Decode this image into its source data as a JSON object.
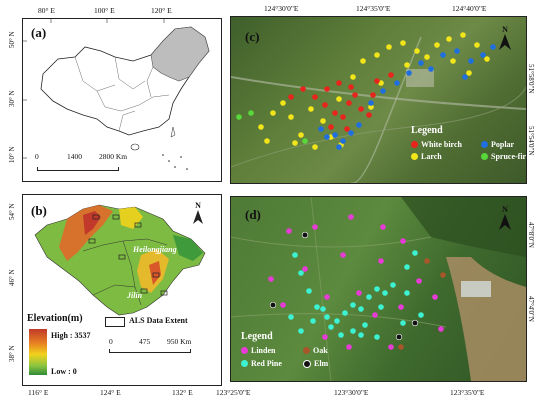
{
  "panel_a": {
    "label": "(a)",
    "top_ticks": [
      "80° E",
      "100° E",
      "120° E"
    ],
    "left_ticks": [
      "50° N",
      "30° N",
      "10° N"
    ],
    "scale": [
      "0",
      "1400",
      "2800 Km"
    ],
    "colors": {
      "highlight": "#bdbdbd",
      "outline": "#222222"
    }
  },
  "panel_b": {
    "label": "(b)",
    "left_ticks": [
      "54° N",
      "46° N",
      "38° N"
    ],
    "bottom_ticks": [
      "116° E",
      "124° E",
      "132° E"
    ],
    "regions": [
      "Heilongjiang",
      "Inner Mongolia",
      "Jilin"
    ],
    "elevation_title": "Elevation(m)",
    "elevation_high": "High : 3537",
    "elevation_low": "Low : 0",
    "als_label": "ALS Data Extent",
    "scale": [
      "0",
      "475",
      "950 Km"
    ],
    "north": "N"
  },
  "panel_c": {
    "label": "(c)",
    "top_ticks": [
      "124°30'0\"E",
      "124°35'0\"E",
      "124°40'0\"E"
    ],
    "right_ticks": [
      "51°58'0\"N",
      "51°54'0\"N"
    ],
    "legend_title": "Legend",
    "legend": [
      {
        "name": "White birch",
        "color": "#e8241c"
      },
      {
        "name": "Poplar",
        "color": "#1f6fe0"
      },
      {
        "name": "Larch",
        "color": "#f2e51a"
      },
      {
        "name": "Spruce-fir",
        "color": "#58d83a"
      }
    ],
    "north": "N"
  },
  "panel_d": {
    "label": "(d)",
    "bottom_ticks": [
      "123°25'0\"E",
      "123°30'0\"E",
      "123°35'0\"E"
    ],
    "right_ticks": [
      "47°8'0\"N",
      "47°4'0\"N"
    ],
    "legend_title": "Legend",
    "legend": [
      {
        "name": "Linden",
        "color": "#e83ad6"
      },
      {
        "name": "Oak",
        "color": "#a8562a"
      },
      {
        "name": "Red Pine",
        "color": "#3df2d2"
      },
      {
        "name": "Elm",
        "color": "#111111"
      }
    ],
    "north": "N"
  }
}
